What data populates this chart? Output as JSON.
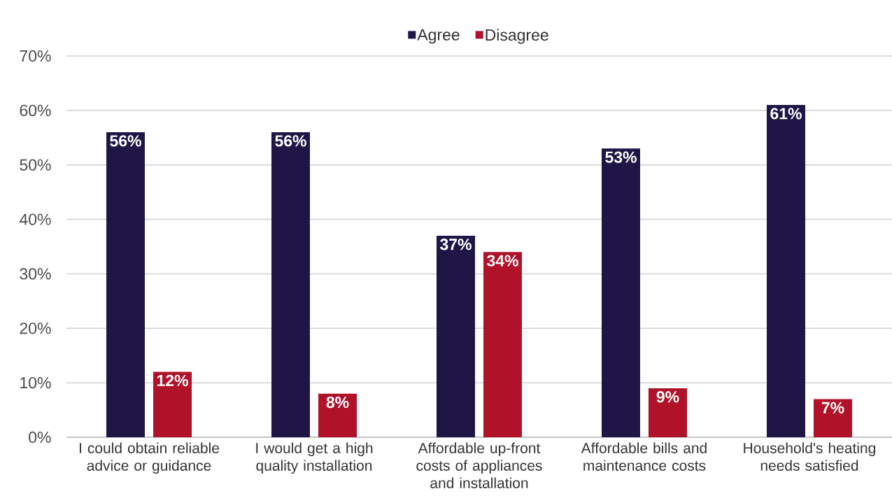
{
  "chart_data": {
    "type": "bar",
    "categories": [
      "I could obtain reliable advice or guidance",
      "I would get a high quality installation",
      "Affordable up-front costs of appliances and installation",
      "Affordable bills and maintenance costs",
      "Household's heating needs satisfied"
    ],
    "series": [
      {
        "name": "Agree",
        "color": "#1f1646",
        "values": [
          56,
          56,
          37,
          53,
          61
        ],
        "value_labels": [
          "56%",
          "56%",
          "37%",
          "53%",
          "61%"
        ]
      },
      {
        "name": "Disagree",
        "color": "#b0122a",
        "values": [
          12,
          8,
          34,
          9,
          7
        ],
        "value_labels": [
          "12%",
          "8%",
          "34%",
          "9%",
          "7%"
        ]
      }
    ],
    "ylim": [
      0,
      70
    ],
    "yticks": [
      {
        "value": 0,
        "label": "0%"
      },
      {
        "value": 10,
        "label": "10%"
      },
      {
        "value": 20,
        "label": "20%"
      },
      {
        "value": 30,
        "label": "30%"
      },
      {
        "value": 40,
        "label": "40%"
      },
      {
        "value": 50,
        "label": "50%"
      },
      {
        "value": 60,
        "label": "60%"
      },
      {
        "value": 70,
        "label": "70%"
      }
    ],
    "grid": "y",
    "legend": "top"
  }
}
